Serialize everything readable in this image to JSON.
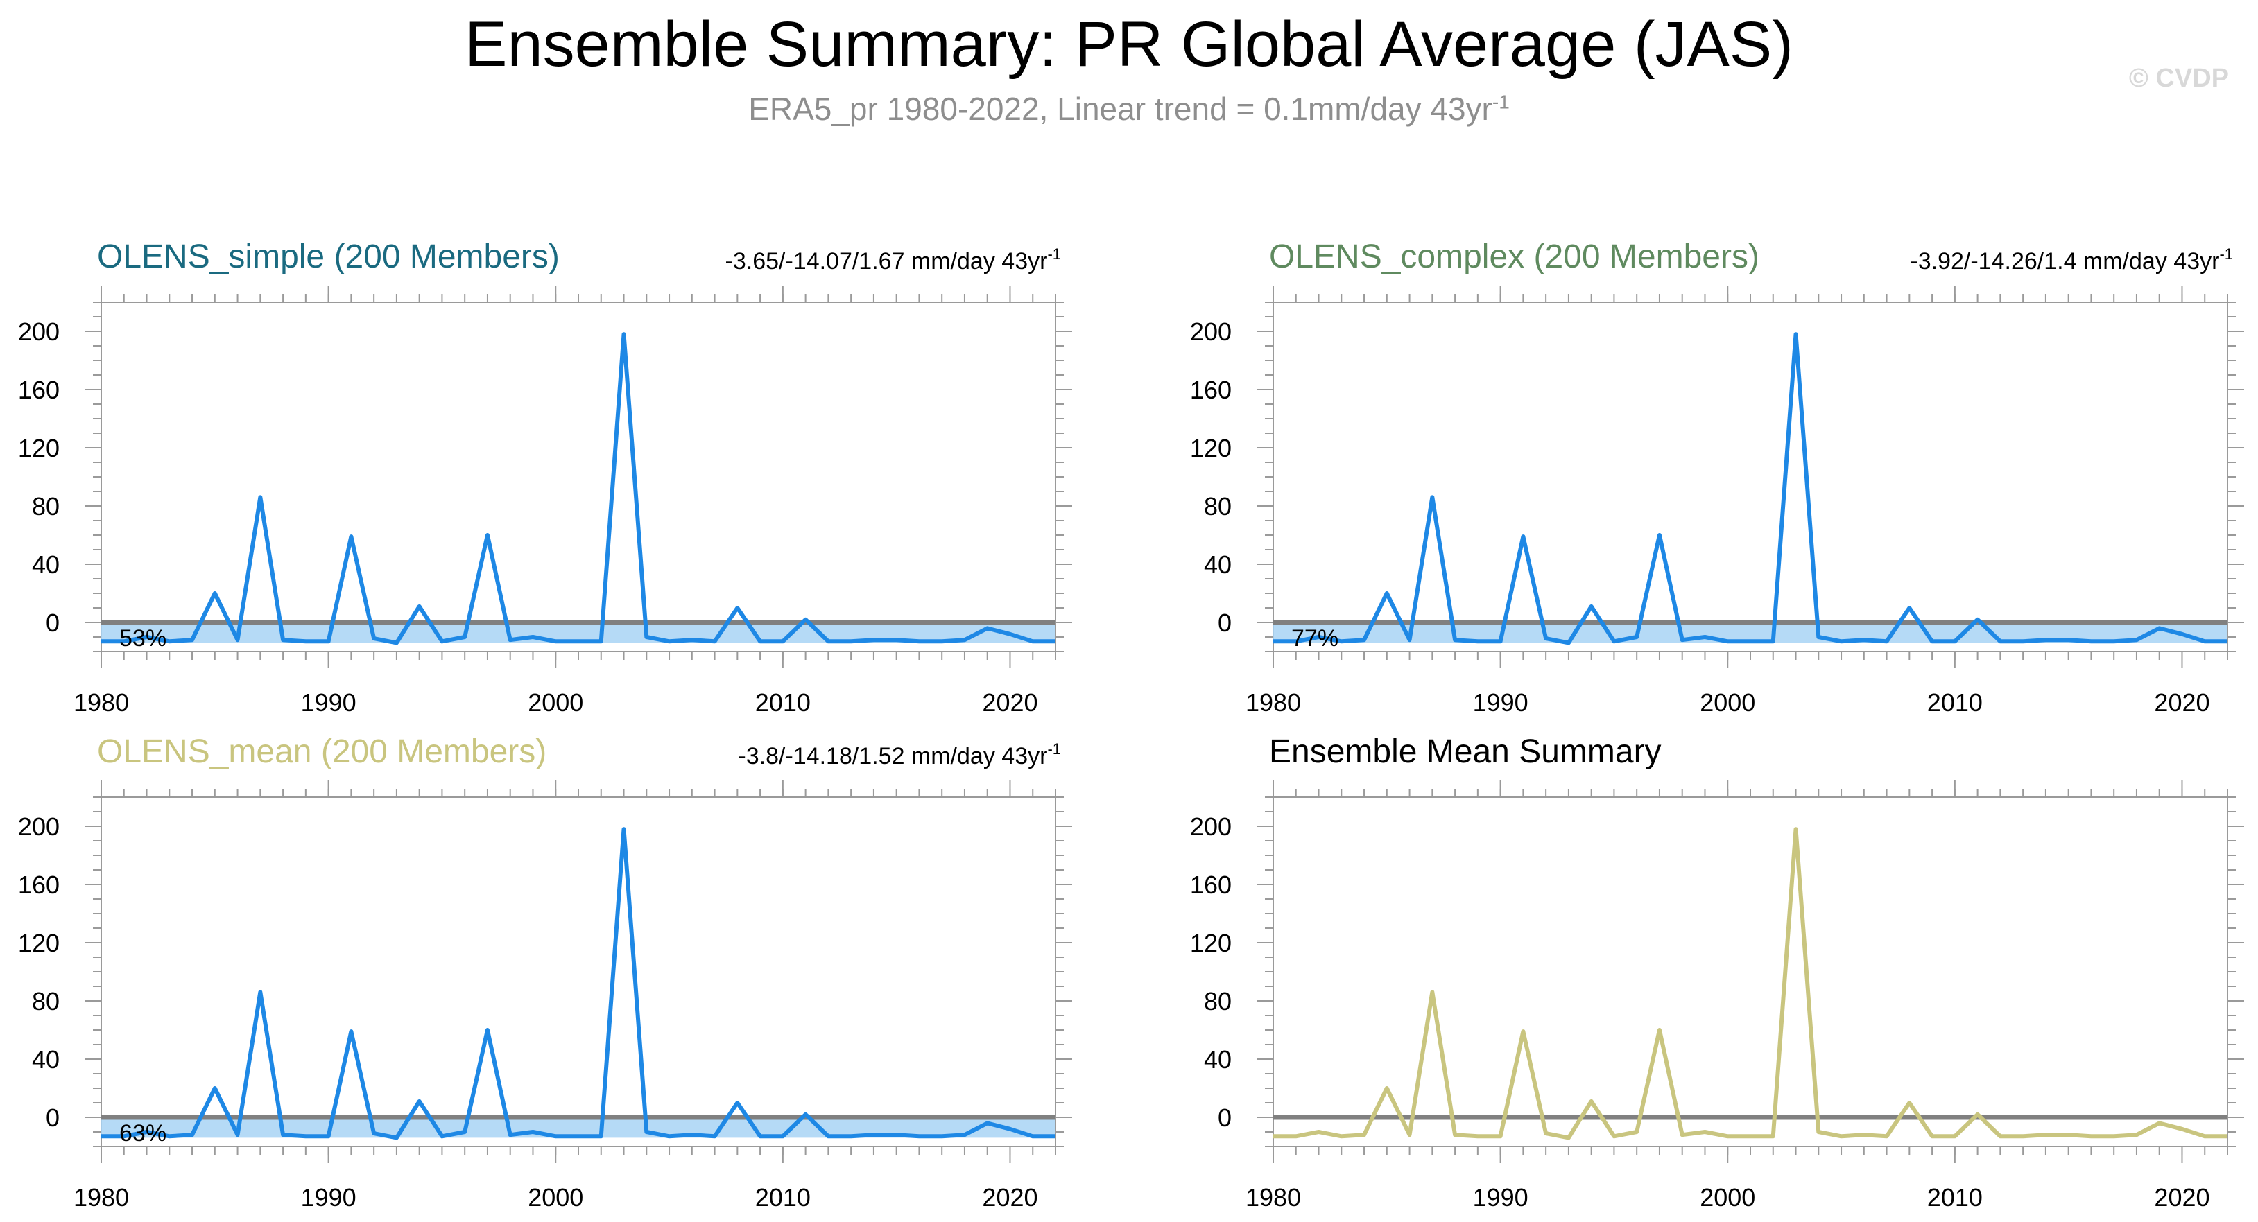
{
  "title": "Ensemble Summary: PR Global Average (JAS)",
  "subtitle": {
    "text": "ERA5_pr 1980-2022, Linear trend = 0.1mm/day 43yr",
    "sup": "-1"
  },
  "copyright": "© CVDP",
  "colors": {
    "member_line": "#1e88e5",
    "spread_band": "#a8d4f5",
    "obs_line": "#808080",
    "simple_title": "#1a6a80",
    "complex_title": "#5f8a5f",
    "mean_title": "#c9c57f",
    "summary_title": "#000000",
    "ensmean_line": "#c9c57f"
  },
  "chart_data": [
    {
      "type": "line",
      "title": "OLENS_simple (200 Members)",
      "stats": "-3.65/-14.07/1.67 mm/day 43yr",
      "stats_sup": "-1",
      "pct_label": "53%",
      "xlim": [
        1980,
        2022
      ],
      "ylim": [
        -20,
        220
      ],
      "xticks": [
        1980,
        1990,
        2000,
        2010,
        2020
      ],
      "yticks": [
        0,
        40,
        80,
        120,
        160,
        200
      ],
      "series": [
        {
          "values_ref": "member"
        },
        {
          "values_ref": "obs"
        }
      ]
    },
    {
      "type": "line",
      "title": "OLENS_complex (200 Members)",
      "stats": "-3.92/-14.26/1.4 mm/day 43yr",
      "stats_sup": "-1",
      "pct_label": "77%",
      "xlim": [
        1980,
        2022
      ],
      "ylim": [
        -20,
        220
      ],
      "xticks": [
        1980,
        1990,
        2000,
        2010,
        2020
      ],
      "yticks": [
        0,
        40,
        80,
        120,
        160,
        200
      ],
      "series": [
        {
          "values_ref": "member"
        },
        {
          "values_ref": "obs"
        }
      ]
    },
    {
      "type": "line",
      "title": "OLENS_mean (200 Members)",
      "stats": "-3.8/-14.18/1.52 mm/day 43yr",
      "stats_sup": "-1",
      "pct_label": "63%",
      "xlim": [
        1980,
        2022
      ],
      "ylim": [
        -20,
        220
      ],
      "xticks": [
        1980,
        1990,
        2000,
        2010,
        2020
      ],
      "yticks": [
        0,
        40,
        80,
        120,
        160,
        200
      ],
      "series": [
        {
          "values_ref": "member"
        },
        {
          "values_ref": "obs"
        }
      ]
    },
    {
      "type": "line",
      "title": "Ensemble Mean Summary",
      "stats": "",
      "stats_sup": "",
      "pct_label": "",
      "xlim": [
        1980,
        2022
      ],
      "ylim": [
        -20,
        220
      ],
      "xticks": [
        1980,
        1990,
        2000,
        2010,
        2020
      ],
      "yticks": [
        0,
        40,
        80,
        120,
        160,
        200
      ],
      "series": [
        {
          "values_ref": "member"
        },
        {
          "values_ref": "obs"
        }
      ]
    }
  ],
  "series_values": {
    "x": [
      1980,
      1981,
      1982,
      1983,
      1984,
      1985,
      1986,
      1987,
      1988,
      1989,
      1990,
      1991,
      1992,
      1993,
      1994,
      1995,
      1996,
      1997,
      1998,
      1999,
      2000,
      2001,
      2002,
      2003,
      2004,
      2005,
      2006,
      2007,
      2008,
      2009,
      2010,
      2011,
      2012,
      2013,
      2014,
      2015,
      2016,
      2017,
      2018,
      2019,
      2020,
      2021,
      2022
    ],
    "member": [
      -13,
      -13,
      -10,
      -13,
      -12,
      20,
      -12,
      86,
      -12,
      -13,
      -13,
      59,
      -11,
      -14,
      11,
      -13,
      -10,
      60,
      -12,
      -10,
      -13,
      -13,
      -13,
      198,
      -10,
      -13,
      -12,
      -13,
      10,
      -13,
      -13,
      2,
      -13,
      -13,
      -12,
      -12,
      -13,
      -13,
      -12,
      -4,
      -8,
      -13,
      -13
    ],
    "obs": [
      0,
      0,
      0,
      0,
      0,
      0,
      0,
      0,
      0,
      0,
      0,
      0,
      0,
      0,
      0,
      0,
      0,
      0,
      0,
      0,
      0,
      0,
      0,
      0,
      0,
      0,
      0,
      0,
      0,
      0,
      0,
      0,
      0,
      0,
      0,
      0,
      0,
      0,
      0,
      0,
      0,
      0,
      0
    ]
  }
}
